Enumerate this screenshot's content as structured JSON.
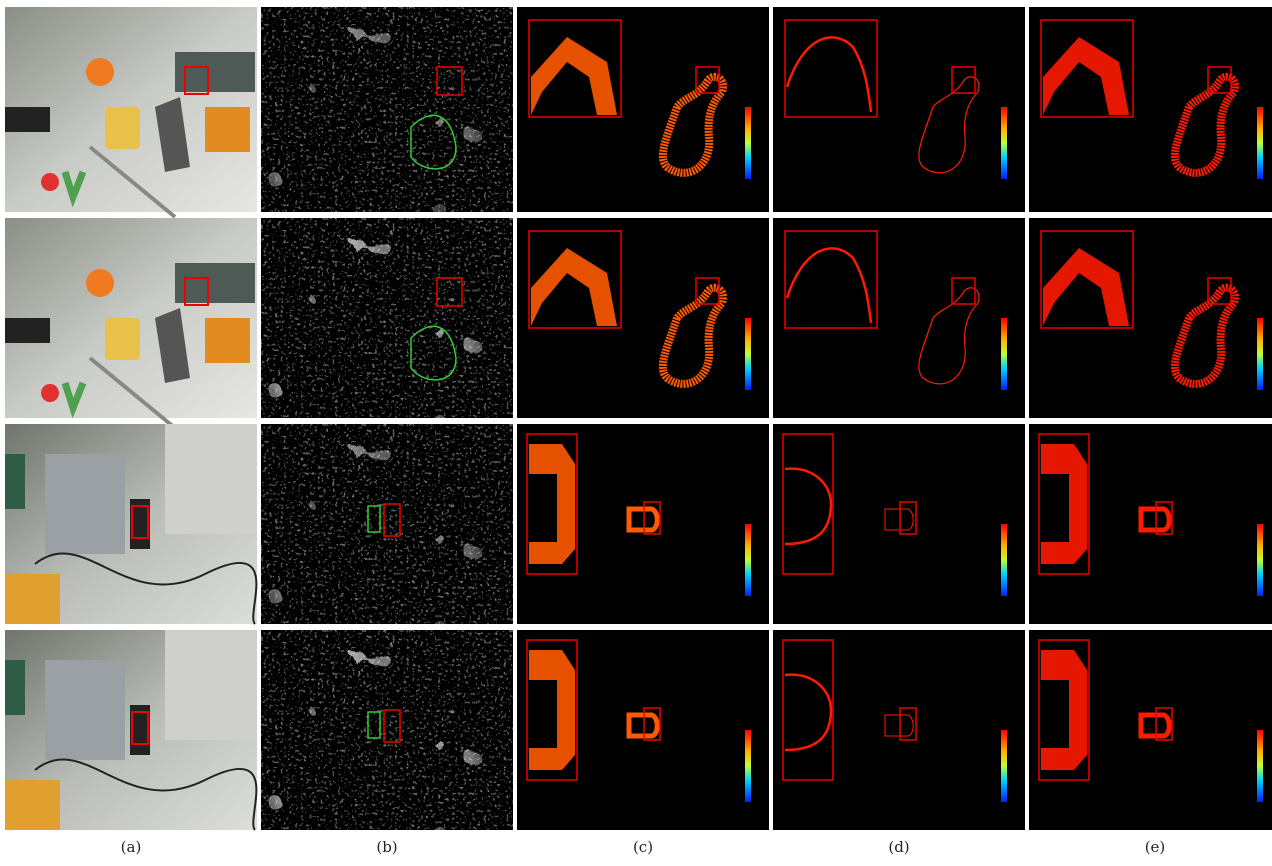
{
  "figure": {
    "columns": [
      {
        "label": "(a)"
      },
      {
        "label": "(b)"
      },
      {
        "label": "(c)"
      },
      {
        "label": "(d)"
      },
      {
        "label": "(e)"
      }
    ]
  }
}
